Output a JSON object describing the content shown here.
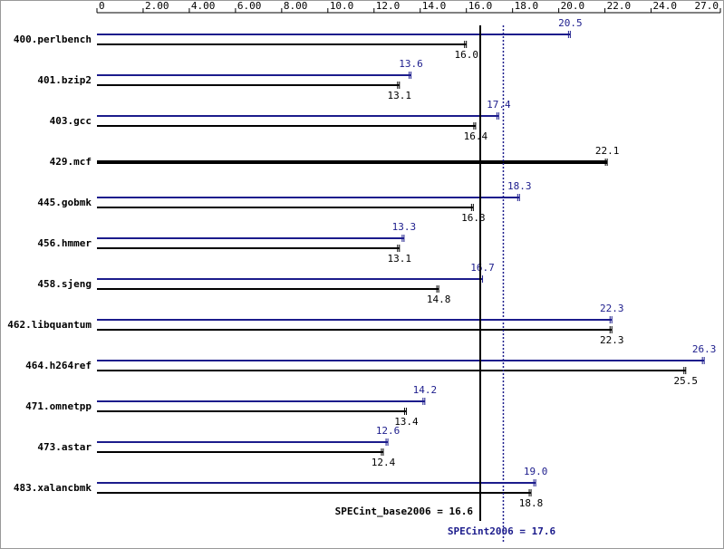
{
  "chart_data": {
    "type": "bar",
    "orientation": "horizontal",
    "categories": [
      "400.perlbench",
      "401.bzip2",
      "403.gcc",
      "429.mcf",
      "445.gobmk",
      "456.hmmer",
      "458.sjeng",
      "462.libquantum",
      "464.h264ref",
      "471.omnetpp",
      "473.astar",
      "483.xalancbmk"
    ],
    "series": [
      {
        "color": "#1c1c8c",
        "values": [
          20.5,
          13.6,
          17.4,
          null,
          18.3,
          13.3,
          16.7,
          22.3,
          26.3,
          14.2,
          12.6,
          19.0
        ],
        "value_labels": [
          "20.5",
          "13.6",
          "17.4",
          null,
          "18.3",
          "13.3",
          "16.7",
          "22.3",
          "26.3",
          "14.2",
          "12.6",
          "19.0"
        ]
      },
      {
        "color": "#000000",
        "values": [
          16.0,
          13.1,
          16.4,
          22.1,
          16.3,
          13.1,
          14.8,
          22.3,
          25.5,
          13.4,
          12.4,
          18.8
        ],
        "value_labels": [
          "16.0",
          "13.1",
          "16.4",
          "22.1",
          "16.3",
          "13.1",
          "14.8",
          "22.3",
          "25.5",
          "13.4",
          "12.4",
          "18.8"
        ]
      }
    ],
    "xlim": [
      0,
      27
    ],
    "xticks": [
      0,
      {
        "value": 2,
        "label": "2.00"
      },
      {
        "value": 4,
        "label": "4.00"
      },
      {
        "value": 6,
        "label": "6.00"
      },
      {
        "value": 8,
        "label": "8.00"
      },
      {
        "value": 10,
        "label": "10.0"
      },
      {
        "value": 12,
        "label": "12.0"
      },
      {
        "value": 14,
        "label": "14.0"
      },
      {
        "value": 16,
        "label": "16.0"
      },
      {
        "value": 18,
        "label": "18.0"
      },
      {
        "value": 20,
        "label": "20.0"
      },
      {
        "value": 22,
        "label": "22.0"
      },
      {
        "value": 24,
        "label": "24.0"
      },
      {
        "value": 27,
        "label": "27.0"
      }
    ],
    "reference_lines": [
      {
        "label": "SPECint_base2006 = 16.6",
        "value": 16.6,
        "color": "#000000",
        "style": "solid"
      },
      {
        "label": "SPECint2006 = 17.6",
        "value": 17.6,
        "color": "#1c1c8c",
        "style": "dotted"
      }
    ]
  }
}
